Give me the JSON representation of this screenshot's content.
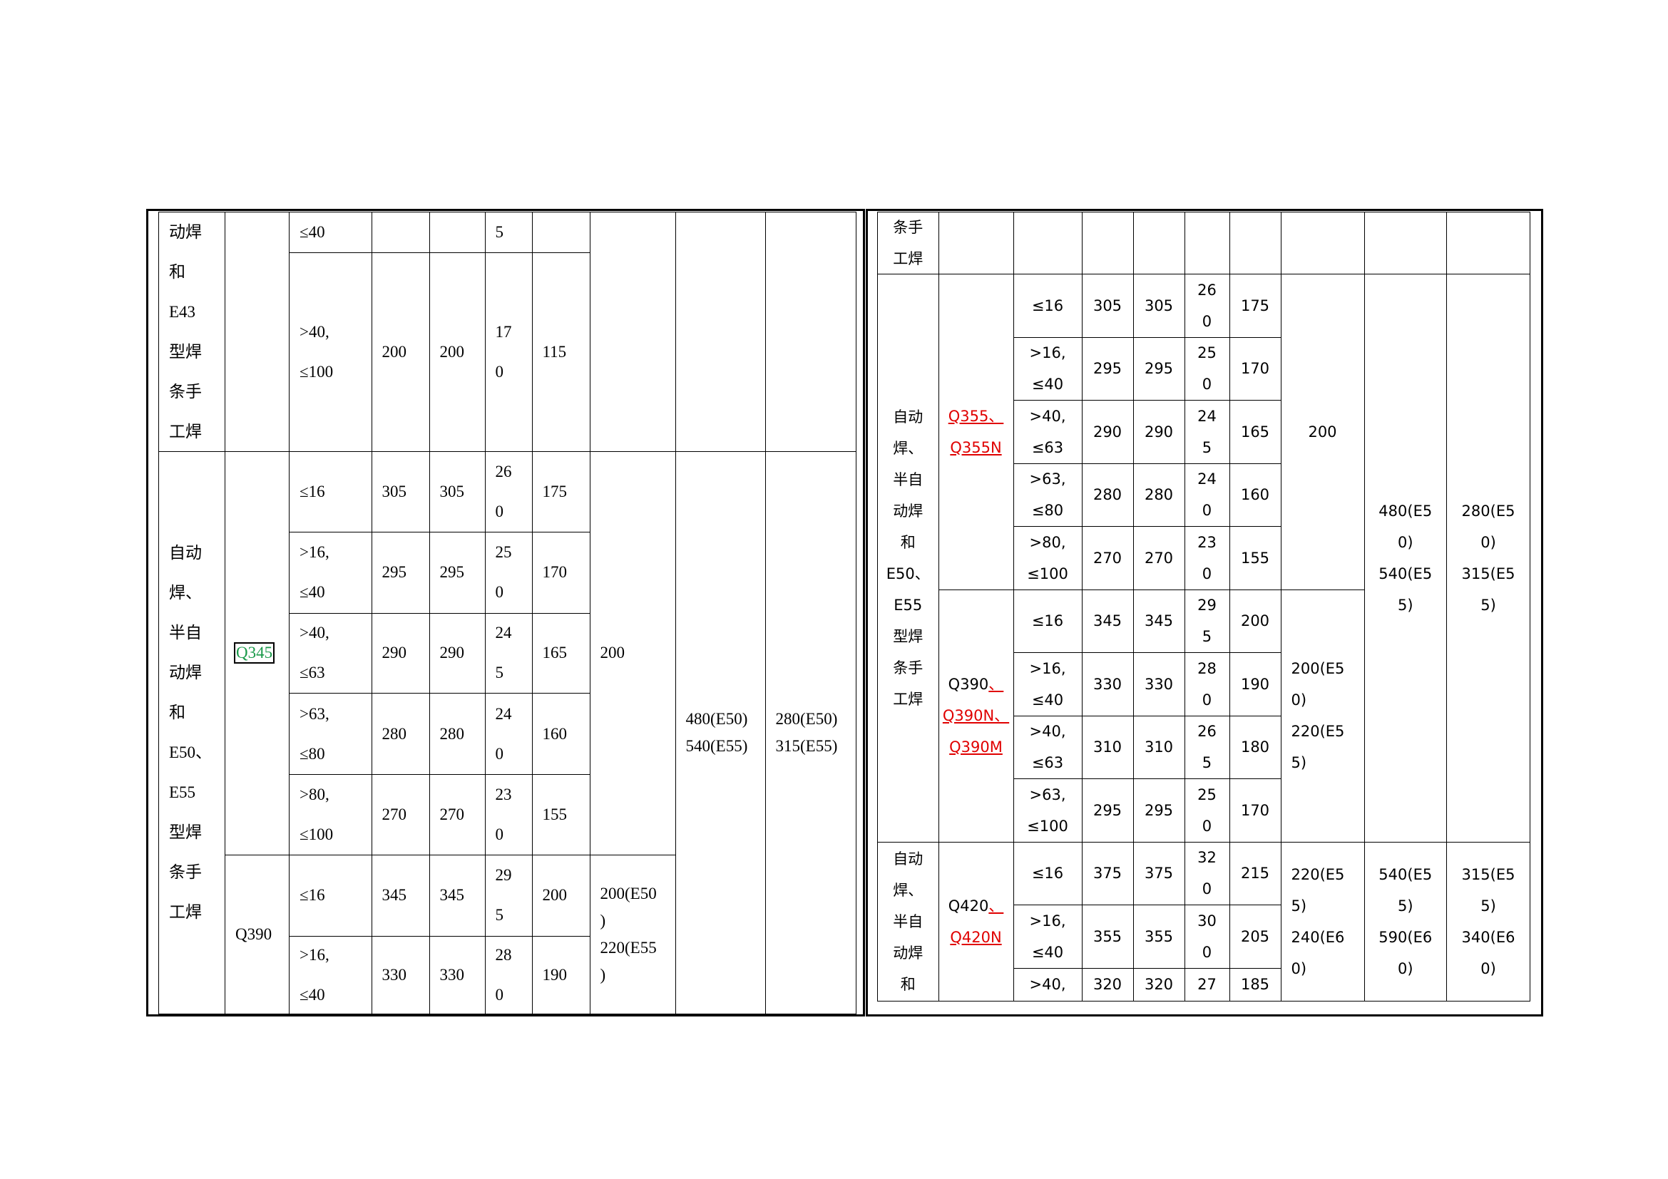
{
  "left": {
    "e43_method": "动焊\n和\nE43\n型焊\n条手\n工焊",
    "e43_rows": [
      {
        "thickness": "≤40",
        "c3": "",
        "c4": "",
        "c5": "5",
        "c6": ""
      },
      {
        "thickness": ">40,\n≤100",
        "c3": "200",
        "c4": "200",
        "c5": "17\n0",
        "c6": "115"
      }
    ],
    "e50_method": "自动\n焊、\n半自\n动焊\n和\nE50、\nE55\n型焊\n条手\n工焊",
    "q345_grade": "Q345",
    "q390_grade": "Q390",
    "q345_rows": [
      {
        "thickness": "≤16",
        "c3": "305",
        "c4": "305",
        "c5": "26\n0",
        "c6": "175"
      },
      {
        "thickness": ">16,\n≤40",
        "c3": "295",
        "c4": "295",
        "c5": "25\n0",
        "c6": "170"
      },
      {
        "thickness": ">40,\n≤63",
        "c3": "290",
        "c4": "290",
        "c5": "24\n5",
        "c6": "165"
      },
      {
        "thickness": ">63,\n≤80",
        "c3": "280",
        "c4": "280",
        "c5": "24\n0",
        "c6": "160"
      },
      {
        "thickness": ">80,\n≤100",
        "c3": "270",
        "c4": "270",
        "c5": "23\n0",
        "c6": "155"
      }
    ],
    "q390_rows": [
      {
        "thickness": "≤16",
        "c3": "345",
        "c4": "345",
        "c5": "29\n5",
        "c6": "200"
      },
      {
        "thickness": ">16,\n≤40",
        "c3": "330",
        "c4": "330",
        "c5": "28\n0",
        "c6": "190"
      }
    ],
    "q345_c7": "200",
    "q390_c7": "200(E50\n)\n220(E55\n)",
    "e50_c8": "480(E50)\n540(E55)",
    "e50_c9": "280(E50)\n315(E55)"
  },
  "right": {
    "top_method": "条手\n工焊",
    "e50_method": "自动\n焊、\n半自\n动焊\n和\nE50、\nE55\n型焊\n条手\n工焊",
    "q355_grade": {
      "line1": "Q355、",
      "line2": "Q355N"
    },
    "q390_grade": {
      "black": "Q390",
      "red1": "、",
      "line2": "Q390N、",
      "line3": "Q390M"
    },
    "q355_rows": [
      {
        "thickness": "≤16",
        "c3": "305",
        "c4": "305",
        "c5": "26\n0",
        "c6": "175"
      },
      {
        "thickness": ">16,\n≤40",
        "c3": "295",
        "c4": "295",
        "c5": "25\n0",
        "c6": "170"
      },
      {
        "thickness": ">40,\n≤63",
        "c3": "290",
        "c4": "290",
        "c5": "24\n5",
        "c6": "165"
      },
      {
        "thickness": ">63,\n≤80",
        "c3": "280",
        "c4": "280",
        "c5": "24\n0",
        "c6": "160"
      },
      {
        "thickness": ">80,\n≤100",
        "c3": "270",
        "c4": "270",
        "c5": "23\n0",
        "c6": "155"
      }
    ],
    "q390_rows": [
      {
        "thickness": "≤16",
        "c3": "345",
        "c4": "345",
        "c5": "29\n5",
        "c6": "200"
      },
      {
        "thickness": ">16,\n≤40",
        "c3": "330",
        "c4": "330",
        "c5": "28\n0",
        "c6": "190"
      },
      {
        "thickness": ">40,\n≤63",
        "c3": "310",
        "c4": "310",
        "c5": "26\n5",
        "c6": "180"
      },
      {
        "thickness": ">63,\n≤100",
        "c3": "295",
        "c4": "295",
        "c5": "25\n0",
        "c6": "170"
      }
    ],
    "q355_c7": "200",
    "q390_c7": "200(E5\n0)\n220(E5\n5)",
    "e50_c8": "480(E5\n0)\n540(E5\n5)",
    "e50_c9": "280(E5\n0)\n315(E5\n5)",
    "e55_method": "自动\n焊、\n半自\n动焊\n和",
    "q420_grade": {
      "black": "Q420",
      "red1": "、",
      "line2": "Q420N"
    },
    "q420_rows": [
      {
        "thickness": "≤16",
        "c3": "375",
        "c4": "375",
        "c5": "32\n0",
        "c6": "215"
      },
      {
        "thickness": ">16,\n≤40",
        "c3": "355",
        "c4": "355",
        "c5": "30\n0",
        "c6": "205"
      },
      {
        "thickness": ">40,",
        "c3": "320",
        "c4": "320",
        "c5": "27",
        "c6": "185"
      }
    ],
    "q420_c7": "220(E5\n5)\n240(E6\n0)",
    "q420_c8": "540(E5\n5)\n590(E6\n0)",
    "q420_c9": "315(E5\n5)\n340(E6\n0)"
  }
}
